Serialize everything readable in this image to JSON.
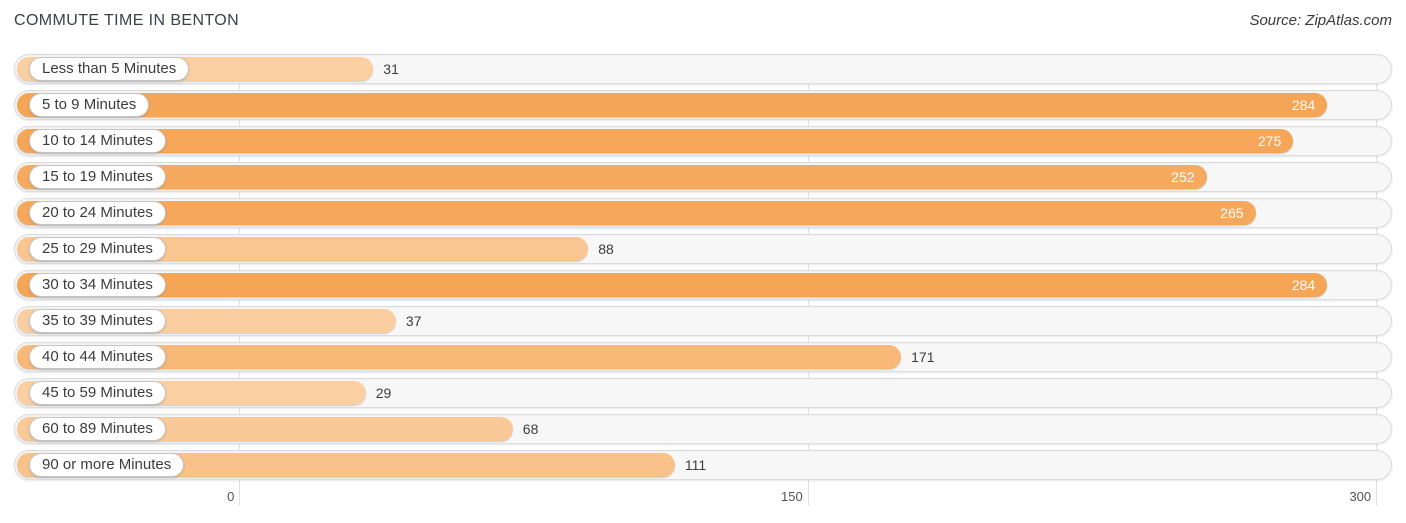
{
  "header": {
    "title": "COMMUTE TIME IN BENTON",
    "source": "Source: ZipAtlas.com"
  },
  "chart_data": {
    "type": "bar",
    "orientation": "horizontal",
    "title": "COMMUTE TIME IN BENTON",
    "categories": [
      "Less than 5 Minutes",
      "5 to 9 Minutes",
      "10 to 14 Minutes",
      "15 to 19 Minutes",
      "20 to 24 Minutes",
      "25 to 29 Minutes",
      "30 to 34 Minutes",
      "35 to 39 Minutes",
      "40 to 44 Minutes",
      "45 to 59 Minutes",
      "60 to 89 Minutes",
      "90 or more Minutes"
    ],
    "values": [
      31,
      284,
      275,
      252,
      265,
      88,
      284,
      37,
      171,
      29,
      68,
      111
    ],
    "xlim": [
      0,
      300
    ],
    "x_ticks": [
      "0",
      "150",
      "300"
    ],
    "grid": true,
    "legend": "none",
    "colors": {
      "bar_low": "#FBD4AB",
      "bar_high": "#F4A251",
      "value_inside_text": "#FFFFFF",
      "value_outside_text": "#3C3C3C"
    }
  }
}
